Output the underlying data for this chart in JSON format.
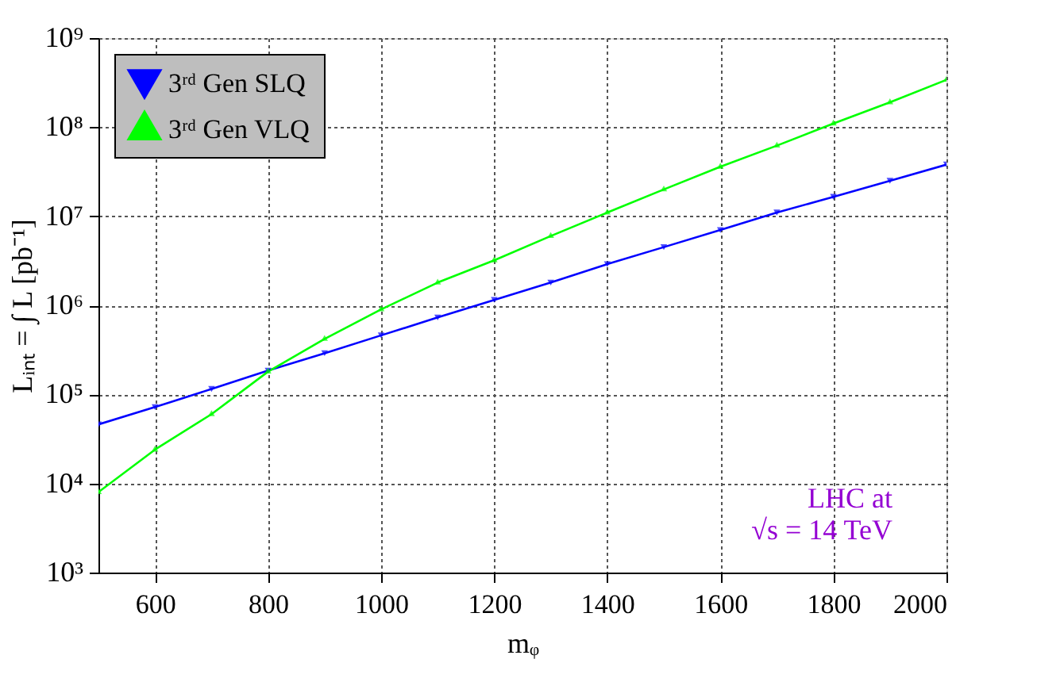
{
  "chart_data": {
    "type": "line",
    "xlabel": "mᵩ",
    "ylabel": "Lᵢₙₜ = ∫ L [pb⁻¹]",
    "x": [
      500,
      600,
      700,
      800,
      900,
      1000,
      1100,
      1200,
      1300,
      1400,
      1500,
      1600,
      1700,
      1800,
      1900,
      2000
    ],
    "series": [
      {
        "name": "3ʳᵈ Gen SLQ",
        "color": "#0000ff",
        "marker": "triangle-down",
        "values": [
          46000,
          72000,
          115000,
          185000,
          290000,
          460000,
          730000,
          1150000,
          1800000,
          2900000,
          4500000,
          7000000,
          11000000,
          16500000,
          25000000,
          38000000
        ]
      },
      {
        "name": "3ʳᵈ Gen VLQ",
        "color": "#00ff00",
        "marker": "triangle",
        "values": [
          8000,
          24000,
          60000,
          180000,
          420000,
          900000,
          1800000,
          3200000,
          6000000,
          11000000,
          20000000,
          36000000,
          62000000,
          110000000,
          190000000,
          340000000
        ]
      }
    ],
    "xlim": [
      500,
      2000
    ],
    "xticks": [
      600,
      800,
      1000,
      1200,
      1400,
      1600,
      1800,
      2000
    ],
    "ylim": [
      1000,
      1000000000
    ],
    "yticks": [
      {
        "value": 1000,
        "label": "10³"
      },
      {
        "value": 10000,
        "label": "10⁴"
      },
      {
        "value": 100000,
        "label": "10⁵"
      },
      {
        "value": 1000000,
        "label": "10⁶"
      },
      {
        "value": 10000000,
        "label": "10⁷"
      },
      {
        "value": 100000000,
        "label": "10⁸"
      },
      {
        "value": 1000000000,
        "label": "10⁹"
      }
    ],
    "log": "y",
    "grid": true,
    "legend": "top left",
    "line_style": "solid",
    "annotations": [
      "LHC at\n√s = 14 TeV"
    ]
  }
}
